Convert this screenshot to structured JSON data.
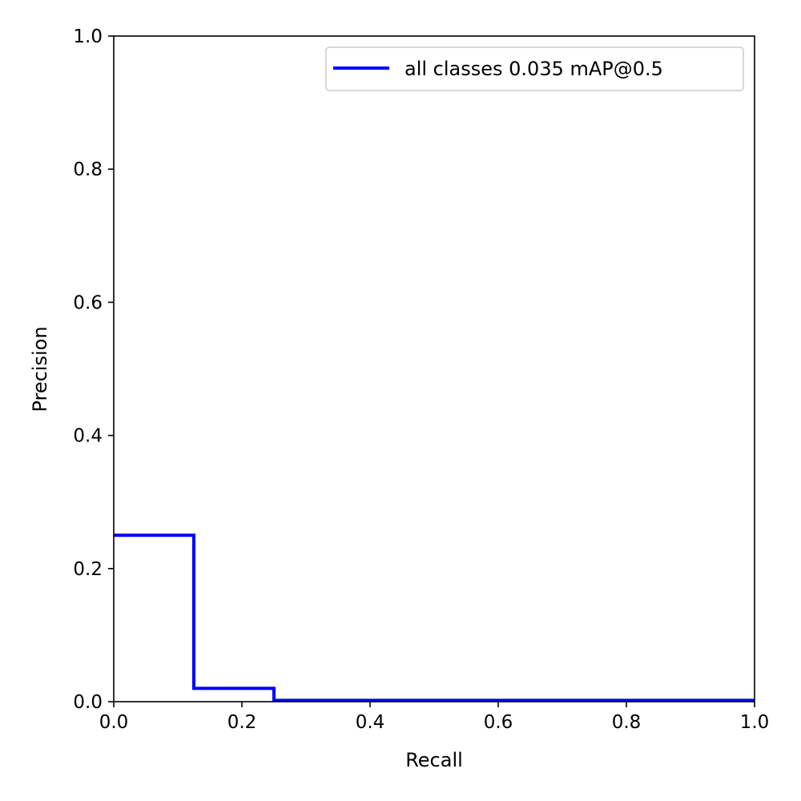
{
  "chart_data": {
    "type": "line",
    "title": "",
    "xlabel": "Recall",
    "ylabel": "Precision",
    "xlim": [
      0,
      1
    ],
    "ylim": [
      0,
      1
    ],
    "xticks": [
      "0.0",
      "0.2",
      "0.4",
      "0.6",
      "0.8",
      "1.0"
    ],
    "yticks": [
      "0.0",
      "0.2",
      "0.4",
      "0.6",
      "0.8",
      "1.0"
    ],
    "grid": false,
    "legend_position": "top-right",
    "series": [
      {
        "name": "all classes 0.035 mAP@0.5",
        "color": "#0000ff",
        "step": true,
        "points": [
          [
            0.0,
            0.25
          ],
          [
            0.125,
            0.25
          ],
          [
            0.125,
            0.02
          ],
          [
            0.25,
            0.02
          ],
          [
            0.25,
            0.002
          ],
          [
            1.0,
            0.002
          ]
        ]
      }
    ]
  }
}
